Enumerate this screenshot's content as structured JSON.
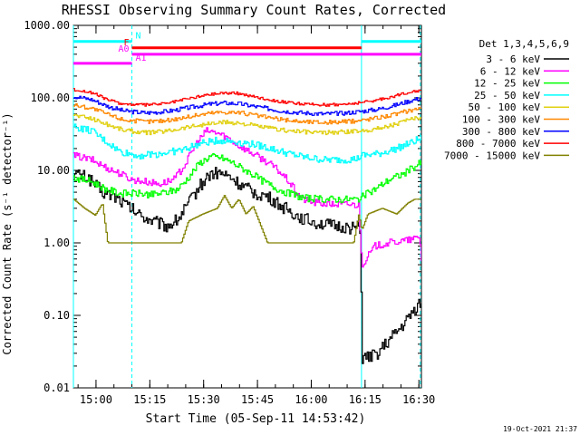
{
  "chart_data": {
    "type": "line",
    "title": "RHESSI Observing Summary Count Rates, Corrected",
    "xlabel": "Start Time (05-Sep-11 14:53:42)",
    "ylabel": "Corrected Count Rate (s⁻¹ detector⁻¹)",
    "x_unit": "minutes after 14:53:42",
    "xlim": [
      0,
      97
    ],
    "ylim": [
      0.01,
      1000
    ],
    "yscale": "log",
    "grid": false,
    "x_ticks": [
      {
        "t": 6.3,
        "label": "15:00"
      },
      {
        "t": 21.3,
        "label": "15:15"
      },
      {
        "t": 36.3,
        "label": "15:30"
      },
      {
        "t": 51.3,
        "label": "15:45"
      },
      {
        "t": 66.3,
        "label": "16:00"
      },
      {
        "t": 81.3,
        "label": "16:15"
      },
      {
        "t": 96.3,
        "label": "16:30"
      }
    ],
    "y_ticks": [
      {
        "v": 1000,
        "label": "1000.00"
      },
      {
        "v": 100,
        "label": "100.00"
      },
      {
        "v": 10,
        "label": "10.00"
      },
      {
        "v": 1,
        "label": "1.00"
      },
      {
        "v": 0.1,
        "label": "0.10"
      },
      {
        "v": 0.01,
        "label": "0.01"
      }
    ],
    "legend": {
      "placement": "top-right",
      "header": "Det 1,3,4,5,6,9"
    },
    "series": [
      {
        "name": "3 - 6 keV",
        "color": "#000000",
        "noise": 0.09,
        "points": [
          [
            0,
            9
          ],
          [
            4,
            8
          ],
          [
            8,
            5
          ],
          [
            12,
            4.2
          ],
          [
            14,
            3.5
          ],
          [
            18,
            2.5
          ],
          [
            22,
            2
          ],
          [
            26,
            1.7
          ],
          [
            29,
            2.1
          ],
          [
            32,
            3.5
          ],
          [
            35,
            6
          ],
          [
            38,
            9
          ],
          [
            41,
            9.2
          ],
          [
            44,
            7.8
          ],
          [
            47,
            6
          ],
          [
            50,
            5
          ],
          [
            54,
            4.3
          ],
          [
            58,
            3.2
          ],
          [
            62,
            2.4
          ],
          [
            66,
            2
          ],
          [
            70,
            1.8
          ],
          [
            72,
            1.7
          ],
          [
            80,
            1.6
          ],
          [
            80.3,
            0.025
          ],
          [
            84,
            0.028
          ],
          [
            88,
            0.045
          ],
          [
            92,
            0.075
          ],
          [
            96,
            0.14
          ],
          [
            97,
            0.15
          ]
        ]
      },
      {
        "name": "6 - 12 keV",
        "color": "#ff00ff",
        "noise": 0.05,
        "points": [
          [
            0,
            16
          ],
          [
            5,
            14
          ],
          [
            9,
            11
          ],
          [
            13,
            9
          ],
          [
            16,
            7.5
          ],
          [
            20,
            7
          ],
          [
            24,
            6.5
          ],
          [
            28,
            7.5
          ],
          [
            31,
            12
          ],
          [
            34,
            23
          ],
          [
            37,
            35
          ],
          [
            40,
            33
          ],
          [
            43,
            28
          ],
          [
            46,
            22
          ],
          [
            50,
            17
          ],
          [
            54,
            13
          ],
          [
            57,
            10
          ],
          [
            60,
            7
          ],
          [
            62,
            5
          ],
          [
            64,
            4
          ],
          [
            67,
            3.6
          ],
          [
            72,
            3.4
          ],
          [
            77,
            3.4
          ],
          [
            79.5,
            3.3
          ],
          [
            80.3,
            0.5
          ],
          [
            84,
            0.9
          ],
          [
            88,
            1
          ],
          [
            94,
            1.1
          ],
          [
            96.5,
            1.2
          ],
          [
            97,
            0.5
          ]
        ]
      },
      {
        "name": "12 - 25 keV",
        "color": "#00ff00",
        "noise": 0.05,
        "points": [
          [
            0,
            8
          ],
          [
            5,
            7
          ],
          [
            9,
            5.5
          ],
          [
            13,
            4.8
          ],
          [
            18,
            4.8
          ],
          [
            22,
            4.6
          ],
          [
            26,
            5
          ],
          [
            29,
            5.5
          ],
          [
            32,
            8
          ],
          [
            35,
            12.5
          ],
          [
            38,
            15.5
          ],
          [
            41,
            15
          ],
          [
            44,
            13
          ],
          [
            48,
            10
          ],
          [
            52,
            7.5
          ],
          [
            56,
            5.8
          ],
          [
            60,
            4.8
          ],
          [
            64,
            4.2
          ],
          [
            68,
            4
          ],
          [
            74,
            4
          ],
          [
            79,
            4
          ],
          [
            80.3,
            4.3
          ],
          [
            84,
            5.5
          ],
          [
            88,
            7.5
          ],
          [
            92,
            9
          ],
          [
            97,
            13
          ]
        ]
      },
      {
        "name": "25 - 50 keV",
        "color": "#00ffff",
        "noise": 0.05,
        "points": [
          [
            0,
            40
          ],
          [
            5,
            35
          ],
          [
            9,
            25
          ],
          [
            13,
            18
          ],
          [
            18,
            16
          ],
          [
            24,
            17
          ],
          [
            30,
            19
          ],
          [
            35,
            23
          ],
          [
            40,
            26
          ],
          [
            45,
            25
          ],
          [
            50,
            23
          ],
          [
            55,
            20
          ],
          [
            60,
            17
          ],
          [
            65,
            15
          ],
          [
            70,
            14
          ],
          [
            75,
            14
          ],
          [
            79,
            14.5
          ],
          [
            80.3,
            16
          ],
          [
            85,
            17
          ],
          [
            90,
            20
          ],
          [
            94,
            24
          ],
          [
            97,
            28
          ]
        ]
      },
      {
        "name": "50 - 100 keV",
        "color": "#e0d010",
        "noise": 0.03,
        "points": [
          [
            0,
            58
          ],
          [
            5,
            52
          ],
          [
            10,
            42
          ],
          [
            14,
            36
          ],
          [
            20,
            33
          ],
          [
            26,
            35
          ],
          [
            32,
            40
          ],
          [
            38,
            44
          ],
          [
            42,
            46
          ],
          [
            46,
            45
          ],
          [
            52,
            40
          ],
          [
            58,
            36
          ],
          [
            64,
            34
          ],
          [
            70,
            33
          ],
          [
            76,
            34
          ],
          [
            80,
            35
          ],
          [
            85,
            38
          ],
          [
            90,
            44
          ],
          [
            94,
            50
          ],
          [
            97,
            55
          ]
        ]
      },
      {
        "name": "100 - 300 keV",
        "color": "#ff8800",
        "noise": 0.03,
        "points": [
          [
            0,
            80
          ],
          [
            5,
            72
          ],
          [
            10,
            58
          ],
          [
            14,
            50
          ],
          [
            20,
            47
          ],
          [
            26,
            49
          ],
          [
            32,
            55
          ],
          [
            38,
            62
          ],
          [
            42,
            64
          ],
          [
            46,
            63
          ],
          [
            52,
            56
          ],
          [
            58,
            50
          ],
          [
            64,
            47
          ],
          [
            70,
            46
          ],
          [
            76,
            47
          ],
          [
            80,
            49
          ],
          [
            85,
            54
          ],
          [
            90,
            60
          ],
          [
            94,
            68
          ],
          [
            97,
            74
          ]
        ]
      },
      {
        "name": "300 - 800 keV",
        "color": "#0000ff",
        "noise": 0.03,
        "points": [
          [
            0,
            105
          ],
          [
            5,
            95
          ],
          [
            10,
            75
          ],
          [
            14,
            66
          ],
          [
            20,
            62
          ],
          [
            26,
            65
          ],
          [
            32,
            73
          ],
          [
            38,
            82
          ],
          [
            42,
            85
          ],
          [
            46,
            83
          ],
          [
            52,
            74
          ],
          [
            58,
            66
          ],
          [
            64,
            62
          ],
          [
            70,
            60
          ],
          [
            76,
            62
          ],
          [
            80,
            65
          ],
          [
            85,
            70
          ],
          [
            90,
            80
          ],
          [
            94,
            92
          ],
          [
            97,
            100
          ]
        ]
      },
      {
        "name": "800 - 7000 keV",
        "color": "#ff0000",
        "noise": 0.02,
        "points": [
          [
            0,
            130
          ],
          [
            5,
            118
          ],
          [
            10,
            92
          ],
          [
            14,
            82
          ],
          [
            20,
            80
          ],
          [
            26,
            84
          ],
          [
            32,
            98
          ],
          [
            38,
            112
          ],
          [
            42,
            118
          ],
          [
            46,
            115
          ],
          [
            52,
            100
          ],
          [
            58,
            88
          ],
          [
            64,
            82
          ],
          [
            70,
            80
          ],
          [
            76,
            82
          ],
          [
            80,
            86
          ],
          [
            85,
            94
          ],
          [
            90,
            108
          ],
          [
            94,
            122
          ],
          [
            97,
            128
          ]
        ]
      },
      {
        "name": "7000 - 15000 keV",
        "color": "#808000",
        "noise": 0.0,
        "points": [
          [
            0,
            4
          ],
          [
            3,
            3
          ],
          [
            6,
            2.4
          ],
          [
            8,
            3.5
          ],
          [
            9.5,
            1
          ],
          [
            16,
            1
          ],
          [
            30,
            1
          ],
          [
            32,
            2
          ],
          [
            36,
            2.5
          ],
          [
            40,
            3
          ],
          [
            42,
            4.5
          ],
          [
            44,
            3
          ],
          [
            46,
            4
          ],
          [
            48,
            2.5
          ],
          [
            50,
            3.2
          ],
          [
            52,
            1.8
          ],
          [
            54,
            1
          ],
          [
            58,
            1
          ],
          [
            66,
            1
          ],
          [
            72,
            1
          ],
          [
            78,
            1
          ],
          [
            79.5,
            2.5
          ],
          [
            80.3,
            1.5
          ],
          [
            82,
            2.5
          ],
          [
            86,
            3
          ],
          [
            90,
            2.5
          ],
          [
            93,
            3.5
          ],
          [
            95,
            4
          ],
          [
            97,
            4
          ]
        ]
      }
    ],
    "attenuator_bars": [
      {
        "label": "N",
        "color": "#00ffff",
        "level": 600,
        "segments": [
          [
            0,
            16.3
          ],
          [
            80.3,
            97
          ]
        ]
      },
      {
        "label": "F",
        "color": "#ff0000",
        "level": 490,
        "segments": [
          [
            16.3,
            80.3
          ]
        ]
      },
      {
        "label": "A0",
        "color": "#ff00ff",
        "level": 400,
        "segments": [
          [
            16.3,
            97
          ]
        ]
      },
      {
        "label": "A1",
        "color": "#ff00ff",
        "level": 300,
        "segments": [
          [
            0,
            16.3
          ]
        ]
      }
    ],
    "state_change_times": [
      {
        "t": 16.3,
        "style": "dashed"
      },
      {
        "t": 80.3,
        "style": "solid"
      },
      {
        "t": 96.7,
        "style": "dashed"
      },
      {
        "t": 0,
        "style": "solid"
      }
    ],
    "footer_date": "19-Oct-2021 21:37"
  }
}
